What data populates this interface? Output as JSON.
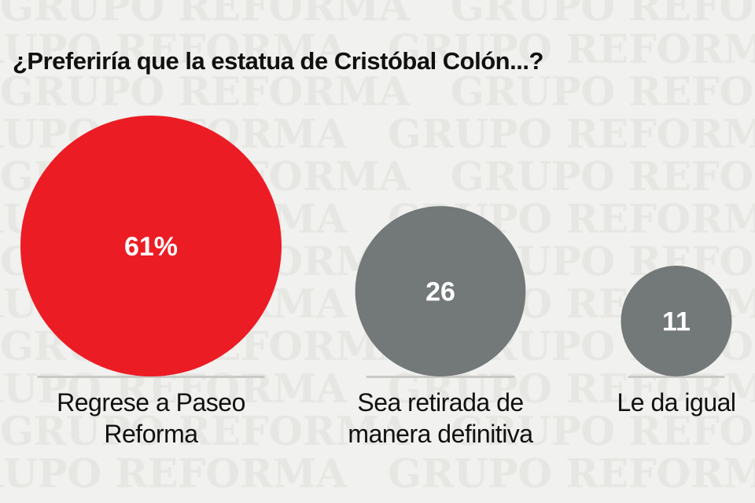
{
  "watermark": "GRUPO REFORMA",
  "chart_data": {
    "type": "bubble",
    "title": "¿Preferiría que la estatua de Cristóbal Colón...?",
    "categories": [
      "Regrese a Paseo Reforma",
      "Sea retirada de manera definitiva",
      "Le da igual"
    ],
    "label_lines": [
      [
        "Regrese a Paseo",
        "Reforma"
      ],
      [
        "Sea retirada de",
        "manera definitiva"
      ],
      [
        "Le da igual"
      ]
    ],
    "values": [
      61,
      26,
      11
    ],
    "value_labels": [
      "61%",
      "26",
      "11"
    ],
    "colors": [
      "#ec1c24",
      "#737878",
      "#737878"
    ],
    "unit": "%"
  }
}
